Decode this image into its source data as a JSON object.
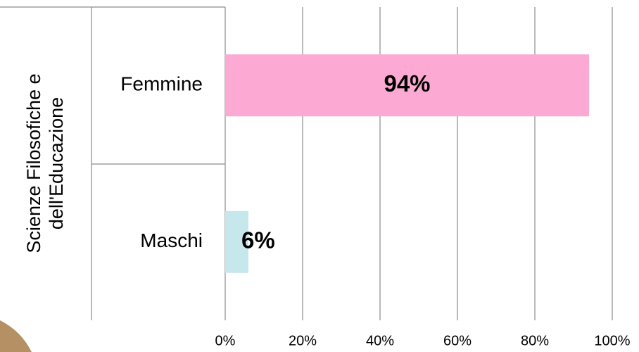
{
  "chart_data": {
    "type": "bar",
    "orientation": "horizontal",
    "group_label": [
      "Scienze Filosofiche e",
      "dell'Educazione"
    ],
    "categories": [
      "Femmine",
      "Maschi"
    ],
    "values": [
      94,
      6
    ],
    "value_labels": [
      "94%",
      "6%"
    ],
    "colors": [
      "#fcaad3",
      "#c6e7eb"
    ],
    "xlim": [
      0,
      100
    ],
    "xticks": [
      {
        "value": 0,
        "label": "0%"
      },
      {
        "value": 20,
        "label": "20%"
      },
      {
        "value": 40,
        "label": "40%"
      },
      {
        "value": 60,
        "label": "60%"
      },
      {
        "value": 80,
        "label": "80%"
      },
      {
        "value": 100,
        "label": "100%"
      }
    ],
    "grid": true
  }
}
